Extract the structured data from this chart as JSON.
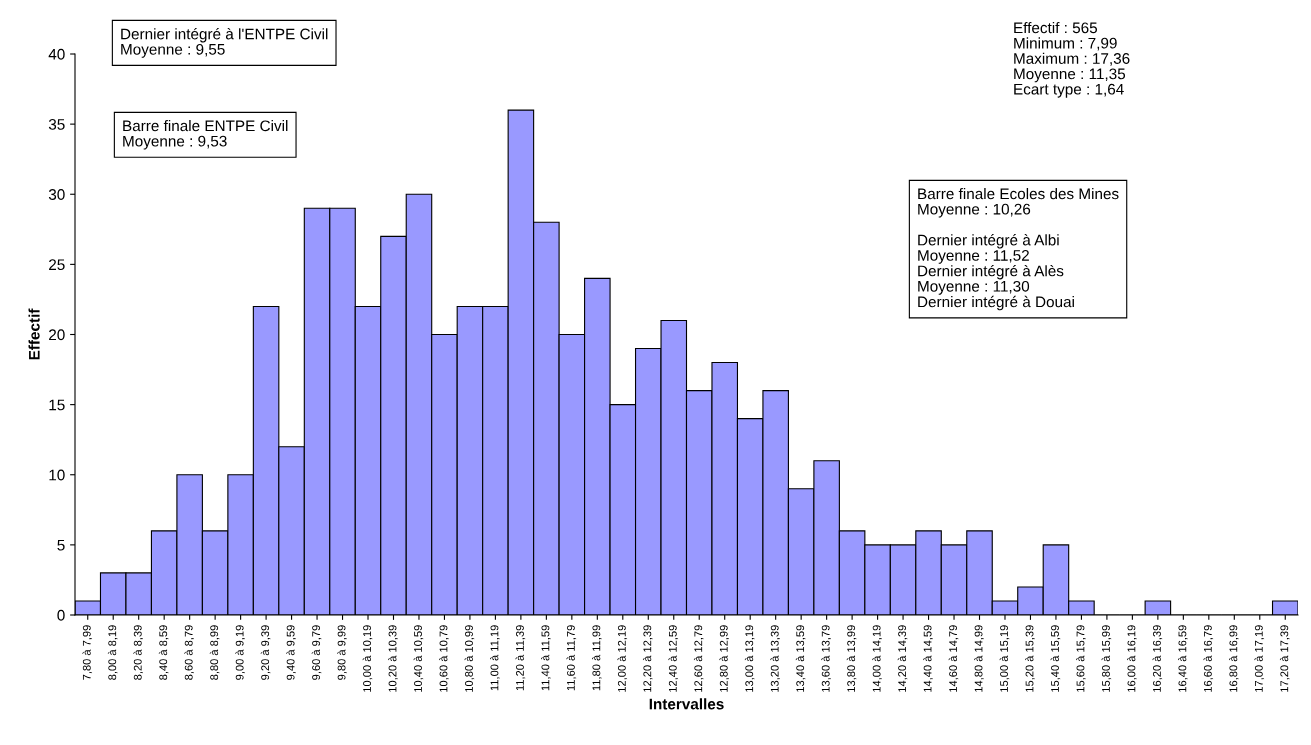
{
  "chart_data": {
    "type": "bar",
    "xlabel": "Intervalles",
    "ylabel": "Effectif",
    "categories": [
      "7,80 à 7,99",
      "8,00 à 8,19",
      "8,20 à 8,39",
      "8,40 à 8,59",
      "8,60 à 8,79",
      "8,80 à 8,99",
      "9,00 à 9,19",
      "9,20 à 9,39",
      "9,40 à 9,59",
      "9,60 à 9,79",
      "9,80 à 9,99",
      "10,00 à 10,19",
      "10,20 à 10,39",
      "10,40 à 10,59",
      "10,60 à 10,79",
      "10,80 à 10,99",
      "11,00 à 11,19",
      "11,20 à 11,39",
      "11,40 à 11,59",
      "11,60 à 11,79",
      "11,80 à 11,99",
      "12,00 à 12,19",
      "12,20 à 12,39",
      "12,40 à 12,59",
      "12,60 à 12,79",
      "12,80 à 12,99",
      "13,00 à 13,19",
      "13,20 à 13,39",
      "13,40 à 13,59",
      "13,60 à 13,79",
      "13,80 à 13,99",
      "14,00 à 14,19",
      "14,20 à 14,39",
      "14,40 à 14,59",
      "14,60 à 14,79",
      "14,80 à 14,99",
      "15,00 à 15,19",
      "15,20 à 15,39",
      "15,40 à 15,59",
      "15,60 à 15,79",
      "15,80 à 15,99",
      "16,00 à 16,19",
      "16,20 à 16,39",
      "16,40 à 16,59",
      "16,60 à 16,79",
      "16,80 à 16,99",
      "17,00 à 17,19",
      "17,20 à 17,39"
    ],
    "values": [
      1,
      3,
      3,
      6,
      10,
      6,
      10,
      22,
      12,
      29,
      29,
      22,
      27,
      30,
      20,
      22,
      22,
      36,
      28,
      20,
      24,
      15,
      19,
      21,
      16,
      18,
      14,
      16,
      9,
      11,
      6,
      5,
      5,
      6,
      5,
      6,
      1,
      2,
      5,
      1,
      0,
      0,
      1,
      0,
      0,
      0,
      0,
      1
    ],
    "color": "#9999ff",
    "ylim": [
      0,
      40
    ],
    "yticks": [
      0,
      5,
      10,
      15,
      20,
      25,
      30,
      35,
      40
    ],
    "grid": false,
    "legend": false,
    "annotations": [
      "Dernier intégré à l'ENTPE Civil\nMoyenne : 9,55",
      "Barre finale ENTPE Civil\nMoyenne : 9,53",
      "Effectif : 565\nMinimum : 7,99\nMaximum : 17,36\nMoyenne : 11,35\nEcart type : 1,64",
      "Barre finale Ecoles des Mines\nMoyenne : 10,26\n\nDernier intégré à Albi\nMoyenne : 11,52\nDernier intégré à Alès\nMoyenne : 11,30\nDernier intégré à Douai"
    ]
  }
}
